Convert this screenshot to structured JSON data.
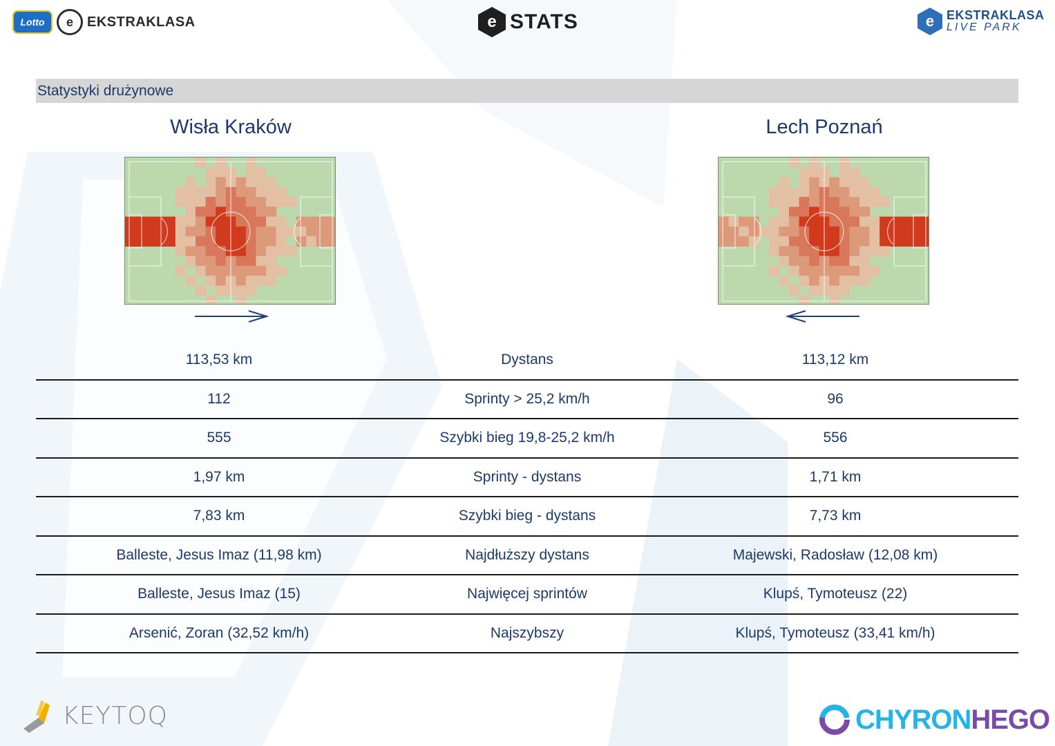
{
  "header": {
    "left_logo_badge": "Lotto",
    "left_logo_ball": "e",
    "left_logo_text": "EKSTRAKLASA",
    "center_logo_mark": "e",
    "center_logo_text": "STATS",
    "right_logo_mark": "e",
    "right_logo_top": "EKSTRAKLASA",
    "right_logo_bottom": "LIVE PARK"
  },
  "section": {
    "title": "Statystyki drużynowe"
  },
  "teams": {
    "home": {
      "name": "Wisła Kraków",
      "attack_direction": "right"
    },
    "away": {
      "name": "Lech Poznań",
      "attack_direction": "left"
    }
  },
  "stats": [
    {
      "label": "Dystans",
      "home": "113,53 km",
      "away": "113,12 km"
    },
    {
      "label": "Sprinty > 25,2 km/h",
      "home": "112",
      "away": "96"
    },
    {
      "label": "Szybki bieg 19,8-25,2 km/h",
      "home": "555",
      "away": "556"
    },
    {
      "label": "Sprinty - dystans",
      "home": "1,97 km",
      "away": "1,71 km"
    },
    {
      "label": "Szybki bieg - dystans",
      "home": "7,83 km",
      "away": "7,73 km"
    },
    {
      "label": "Najdłuższy dystans",
      "home": "Balleste, Jesus Imaz (11,98 km)",
      "away": "Majewski, Radosław (12,08 km)"
    },
    {
      "label": "Najwięcej sprintów",
      "home": "Balleste, Jesus Imaz (15)",
      "away": "Klupś, Tymoteusz (22)"
    },
    {
      "label": "Najszybszy",
      "home": "Arsenić, Zoran (32,52 km/h)",
      "away": "Klupś, Tymoteusz (33,41 km/h)"
    }
  ],
  "footer": {
    "left_logo_text": "KEYTOQ",
    "right_logo_text_a": "CHYRON",
    "right_logo_text_b": "HEGO"
  },
  "colors": {
    "text": "#1b3a6b",
    "section_bar": "#d6d6d6",
    "pitch_grass": "#bcd9ae",
    "heat_low": "#e7b49a",
    "heat_mid": "#d9775a",
    "heat_high": "#d23a1e",
    "row_rule": "#1a1a1a"
  },
  "icons": [
    "lotto-badge-icon",
    "ekstraklasa-ball-icon",
    "estats-hexagon-icon",
    "live-park-hexagon-icon",
    "direction-arrow-right-icon",
    "direction-arrow-left-icon",
    "keytoq-icon",
    "chyronhego-ring-icon"
  ]
}
